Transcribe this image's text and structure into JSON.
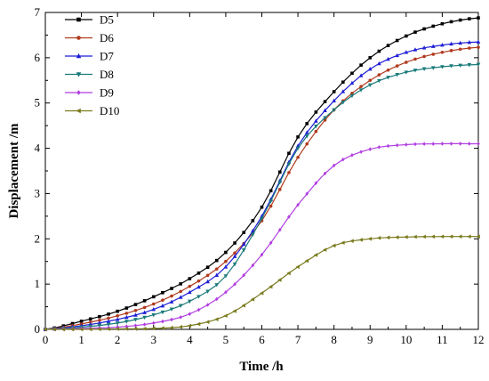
{
  "chart_data": {
    "type": "line",
    "xlabel": "Time /h",
    "ylabel": "Displacement /m",
    "xlim": [
      0,
      12
    ],
    "ylim": [
      0,
      7
    ],
    "xticks": [
      "0",
      "1",
      "2",
      "3",
      "4",
      "5",
      "6",
      "7",
      "8",
      "9",
      "10",
      "11",
      "12"
    ],
    "yticks": [
      "0",
      "1",
      "2",
      "3",
      "4",
      "5",
      "6",
      "7"
    ],
    "grid": false,
    "legend_position": "top-left",
    "x": [
      0,
      1,
      2,
      3,
      4,
      5,
      6,
      7,
      8,
      9,
      10,
      11,
      12
    ],
    "series": [
      {
        "name": "D5",
        "color": "#000000",
        "marker": "square",
        "values": [
          0,
          0.18,
          0.4,
          0.72,
          1.12,
          1.7,
          2.7,
          4.25,
          5.25,
          6.0,
          6.48,
          6.75,
          6.88
        ]
      },
      {
        "name": "D6",
        "color": "#b03a1e",
        "marker": "circle",
        "values": [
          0,
          0.12,
          0.3,
          0.56,
          0.95,
          1.5,
          2.4,
          3.8,
          4.85,
          5.5,
          5.9,
          6.12,
          6.23
        ]
      },
      {
        "name": "D7",
        "color": "#1f1fd6",
        "marker": "triangle",
        "values": [
          0,
          0.08,
          0.22,
          0.44,
          0.82,
          1.38,
          2.5,
          4.05,
          5.05,
          5.75,
          6.12,
          6.28,
          6.35
        ]
      },
      {
        "name": "D8",
        "color": "#1a7a7a",
        "marker": "tri-down",
        "values": [
          0,
          0.05,
          0.14,
          0.32,
          0.62,
          1.18,
          2.45,
          4.0,
          4.85,
          5.4,
          5.68,
          5.8,
          5.85
        ]
      },
      {
        "name": "D9",
        "color": "#b13fe0",
        "marker": "diamond",
        "values": [
          0,
          0.02,
          0.05,
          0.14,
          0.34,
          0.82,
          1.65,
          2.75,
          3.62,
          3.98,
          4.08,
          4.1,
          4.1
        ]
      },
      {
        "name": "D10",
        "color": "#7a7a1e",
        "marker": "tri-left",
        "values": [
          0,
          0,
          0.01,
          0.02,
          0.08,
          0.3,
          0.8,
          1.38,
          1.85,
          2.0,
          2.04,
          2.05,
          2.05
        ]
      }
    ]
  }
}
